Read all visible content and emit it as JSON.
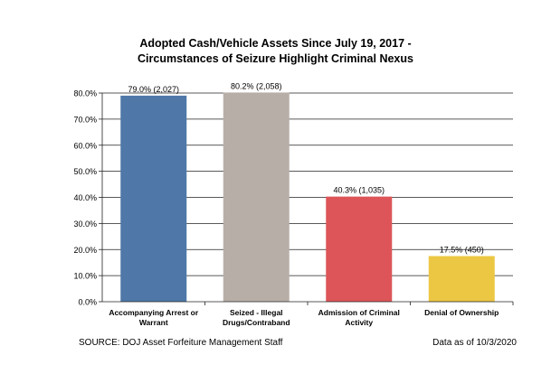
{
  "chart_data": {
    "type": "bar",
    "title_line1": "Adopted Cash/Vehicle Assets Since July 19, 2017 -",
    "title_line2": "Circumstances of Seizure Highlight Criminal Nexus",
    "xlabel": "",
    "ylabel": "",
    "ylim": [
      0,
      80
    ],
    "y_ticks": [
      0,
      10,
      20,
      30,
      40,
      50,
      60,
      70,
      80
    ],
    "y_tick_labels": [
      "0.0%",
      "10.0%",
      "20.0%",
      "30.0%",
      "40.0%",
      "50.0%",
      "60.0%",
      "70.0%",
      "80.0%"
    ],
    "grid": true,
    "legend": "none",
    "categories": [
      [
        "Accompanying Arrest or",
        "Warrant"
      ],
      [
        "Seized - Illegal",
        "Drugs/Contraband"
      ],
      [
        "Admission of Criminal",
        "Activity"
      ],
      [
        "Denial of Ownership"
      ]
    ],
    "values": [
      79.0,
      80.2,
      40.3,
      17.5
    ],
    "counts": [
      2027,
      2058,
      1035,
      450
    ],
    "data_labels": [
      "79.0% (2,027)",
      "80.2% (2,058)",
      "40.3% (1,035)",
      "17.5% (450)"
    ],
    "colors": [
      "#4f78a8",
      "#b8aea8",
      "#dd5558",
      "#ecc744"
    ]
  },
  "footer": {
    "source": "SOURCE:  DOJ Asset Forfeiture Management Staff",
    "as_of": "Data as of 10/3/2020"
  }
}
